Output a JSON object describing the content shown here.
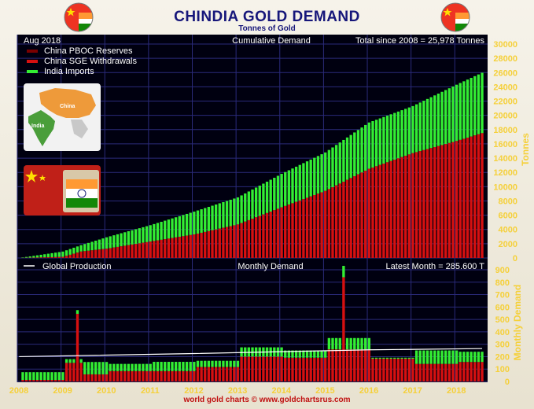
{
  "header": {
    "title": "CHINDIA GOLD DEMAND",
    "subtitle": "Tonnes of Gold",
    "footer": "world gold charts © www.goldchartsrus.com"
  },
  "top_panel": {
    "date": "Aug 2018",
    "heading": "Cumulative Demand",
    "total": "Total since 2008 = 25,978 Tonnes"
  },
  "bottom_panel": {
    "legend": "Global Production",
    "heading": "Monthly Demand",
    "latest": "Latest Month = 285.600 T"
  },
  "map_labels": {
    "china": "China",
    "india": "India"
  },
  "colors": {
    "pboc": "#7a0000",
    "sge": "#d61010",
    "india": "#33ee33",
    "production": "#ffffff",
    "background": "#000010",
    "tick": "#f5d03a"
  },
  "chart_data": [
    {
      "type": "bar",
      "stacked": true,
      "title": "Cumulative Demand",
      "ylabel": "Tonnes",
      "ylim": [
        0,
        30000
      ],
      "yticks": [
        0,
        2000,
        4000,
        6000,
        8000,
        10000,
        12000,
        14000,
        16000,
        18000,
        20000,
        22000,
        24000,
        26000,
        28000,
        30000
      ],
      "x_start": "2008-01",
      "x_end": "2018-08",
      "xticks": [
        "2008",
        "2009",
        "2010",
        "2011",
        "2012",
        "2013",
        "2014",
        "2015",
        "2016",
        "2017",
        "2018"
      ],
      "series": [
        {
          "name": "China PBOC Reserves",
          "color": "#7a0000"
        },
        {
          "name": "China SGE Withdrawals",
          "color": "#d61010"
        },
        {
          "name": "India Imports",
          "color": "#33ee33"
        }
      ],
      "checkpoints": [
        {
          "date": "2008-01",
          "china": 0,
          "total": 0
        },
        {
          "date": "2009-01",
          "china": 150,
          "total": 900
        },
        {
          "date": "2009-06",
          "china": 900,
          "total": 1800
        },
        {
          "date": "2010-01",
          "china": 1300,
          "total": 2900
        },
        {
          "date": "2011-01",
          "china": 2300,
          "total": 4600
        },
        {
          "date": "2012-01",
          "china": 3300,
          "total": 6500
        },
        {
          "date": "2013-01",
          "china": 4700,
          "total": 8500
        },
        {
          "date": "2014-01",
          "china": 7100,
          "total": 11800
        },
        {
          "date": "2015-01",
          "china": 9400,
          "total": 14800
        },
        {
          "date": "2016-01",
          "china": 12500,
          "total": 19000
        },
        {
          "date": "2017-01",
          "china": 14700,
          "total": 21300
        },
        {
          "date": "2018-01",
          "china": 16400,
          "total": 24300
        },
        {
          "date": "2018-08",
          "china": 17500,
          "total": 25978
        }
      ]
    },
    {
      "type": "bar",
      "stacked": true,
      "title": "Monthly Demand",
      "ylabel": "Monthly Demand",
      "ylim": [
        0,
        900
      ],
      "yticks": [
        0,
        100,
        200,
        300,
        400,
        500,
        600,
        700,
        800,
        900
      ],
      "x_start": "2008-01",
      "x_end": "2018-08",
      "xticks": [
        "2008",
        "2009",
        "2010",
        "2011",
        "2012",
        "2013",
        "2014",
        "2015",
        "2016",
        "2017",
        "2018"
      ],
      "latest_month": 285.6,
      "spikes": [
        {
          "date": "2009-05",
          "china": 545
        },
        {
          "date": "2015-06",
          "china": 840
        }
      ],
      "global_production": [
        {
          "date": "2008-01",
          "value": 200
        },
        {
          "date": "2012-01",
          "value": 225
        },
        {
          "date": "2016-01",
          "value": 255
        },
        {
          "date": "2018-08",
          "value": 265
        }
      ]
    }
  ]
}
